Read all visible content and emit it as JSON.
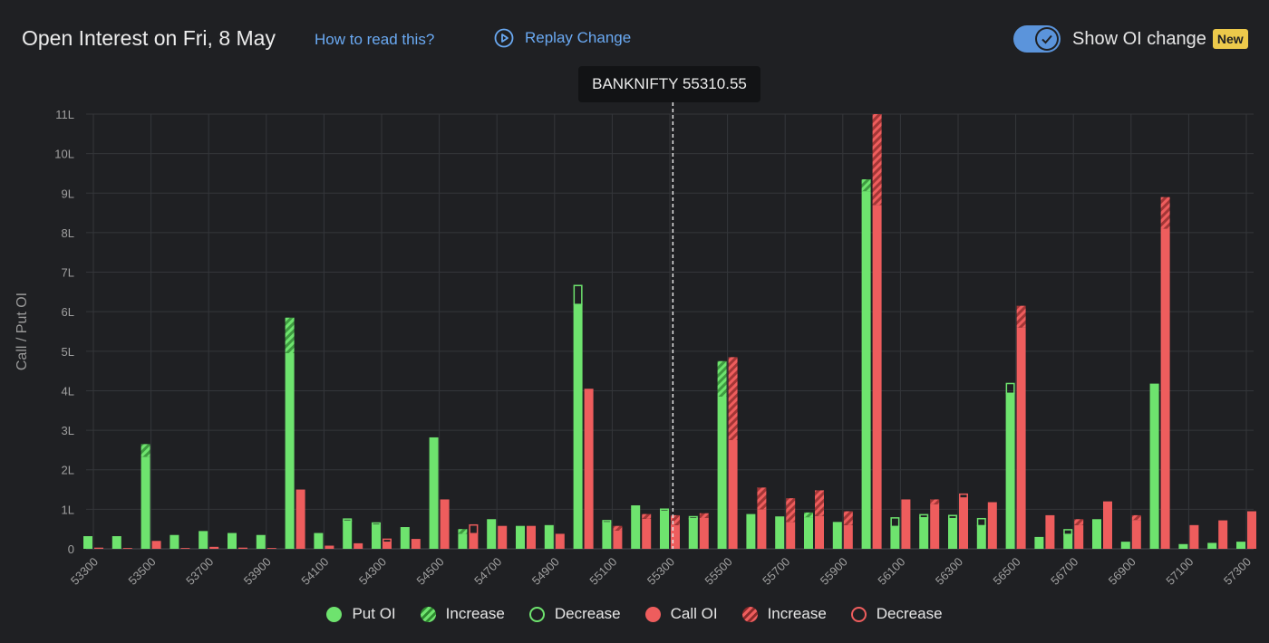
{
  "header": {
    "title": "Open Interest on Fri, 8 May",
    "how_to_read": "How to read this?",
    "replay": "Replay Change",
    "toggle_label": "Show OI change",
    "badge": "New"
  },
  "tooltip": {
    "text": "BANKNIFTY 55310.55",
    "spot": 55310.55
  },
  "colors": {
    "put": "#6ee36e",
    "call": "#ee5d5d",
    "accent": "#5b94db",
    "badge": "#ecc94b"
  },
  "legend": [
    {
      "label": "Put OI",
      "style": "put"
    },
    {
      "label": "Increase",
      "style": "put-inc"
    },
    {
      "label": "Decrease",
      "style": "put-dec"
    },
    {
      "label": "Call OI",
      "style": "call"
    },
    {
      "label": "Increase",
      "style": "call-inc"
    },
    {
      "label": "Decrease",
      "style": "call-dec"
    }
  ],
  "chart_data": {
    "type": "bar",
    "ylabel": "Call / Put OI",
    "ylim": [
      0,
      11
    ],
    "yunit": "L",
    "ytick_labels": [
      "0",
      "1L",
      "2L",
      "3L",
      "4L",
      "5L",
      "6L",
      "7L",
      "8L",
      "9L",
      "10L",
      "11L"
    ],
    "xtick_labels": [
      "53300",
      "53500",
      "53700",
      "53900",
      "54100",
      "54300",
      "54500",
      "54700",
      "54900",
      "55100",
      "55300",
      "55500",
      "55700",
      "55900",
      "56100",
      "56300",
      "56500",
      "56700",
      "56900",
      "57100",
      "57300"
    ],
    "grid": true,
    "legend_position": "bottom",
    "categories": [
      53300,
      53400,
      53500,
      53600,
      53700,
      53800,
      53900,
      54000,
      54100,
      54200,
      54300,
      54400,
      54500,
      54600,
      54700,
      54800,
      54900,
      55000,
      55100,
      55200,
      55300,
      55400,
      55500,
      55600,
      55700,
      55800,
      55900,
      56000,
      56100,
      56200,
      56300,
      56400,
      56500,
      56600,
      56700,
      56800,
      56900,
      57000,
      57100,
      57200,
      57300
    ],
    "series": [
      {
        "name": "Put OI",
        "values": [
          0.32,
          0.32,
          2.65,
          0.35,
          0.45,
          0.4,
          0.35,
          5.85,
          0.4,
          0.72,
          0.62,
          0.55,
          2.82,
          0.5,
          0.75,
          0.58,
          0.6,
          6.2,
          0.68,
          1.1,
          0.97,
          0.78,
          4.75,
          0.88,
          0.82,
          0.92,
          0.68,
          9.35,
          0.58,
          0.8,
          0.78,
          0.6,
          3.95,
          0.3,
          0.38,
          0.75,
          0.18,
          4.18,
          0.12,
          0.15,
          0.18
        ],
        "change": [
          0,
          0,
          0.32,
          0,
          0,
          0,
          0,
          0.9,
          0,
          -0.05,
          -0.05,
          0,
          0,
          0.12,
          0,
          0,
          0,
          -0.48,
          -0.05,
          0,
          -0.05,
          -0.05,
          0.9,
          0,
          0,
          0.12,
          0,
          0.3,
          -0.22,
          -0.08,
          -0.08,
          -0.18,
          -0.25,
          0,
          -0.12,
          0,
          0,
          0,
          0,
          0,
          0
        ]
      },
      {
        "name": "Call OI",
        "values": [
          0.03,
          0.02,
          0.2,
          0.02,
          0.05,
          0.03,
          0.02,
          1.5,
          0.08,
          0.14,
          0.18,
          0.25,
          1.25,
          0.4,
          0.58,
          0.58,
          0.38,
          4.05,
          0.58,
          0.88,
          0.85,
          0.9,
          4.85,
          1.55,
          1.28,
          1.48,
          0.95,
          11.0,
          1.25,
          1.25,
          1.3,
          1.18,
          6.15,
          0.85,
          0.75,
          1.2,
          0.85,
          8.9,
          0.6,
          0.72,
          0.95
        ],
        "change": [
          0,
          0,
          0,
          0,
          0,
          0,
          0,
          0,
          0,
          0,
          -0.08,
          0,
          0,
          -0.22,
          0,
          0,
          0,
          0,
          0.12,
          0.12,
          0.25,
          0.12,
          2.1,
          0.55,
          0.6,
          0.65,
          0.35,
          2.3,
          0,
          0.12,
          -0.1,
          0,
          0.55,
          0,
          0.15,
          0,
          0.12,
          0.8,
          0,
          0,
          0
        ]
      }
    ]
  }
}
